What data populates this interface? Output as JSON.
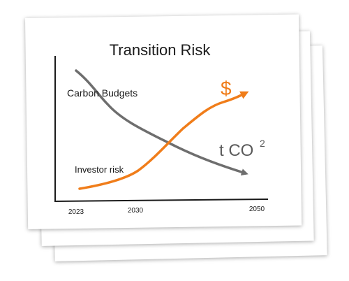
{
  "diagram": {
    "title": "Transition Risk",
    "labels": {
      "carbon_budgets": "Carbon Budgets",
      "investor_risk": "Investor risk",
      "currency_symbol": "$",
      "emissions_unit": "t CO",
      "emissions_superscript": "2"
    },
    "x_ticks": [
      "2023",
      "2030",
      "2050"
    ],
    "series": [
      {
        "name": "Carbon Budgets",
        "trend": "decreasing",
        "color": "#6e6e6e"
      },
      {
        "name": "Investor risk",
        "trend": "increasing",
        "color": "#f07d1a"
      }
    ],
    "colors": {
      "axis": "#1a1a1a",
      "paper": "#ffffff",
      "decline_line": "#6e6e6e",
      "rise_line": "#f07d1a",
      "emissions_text": "#5a5a5a"
    }
  }
}
